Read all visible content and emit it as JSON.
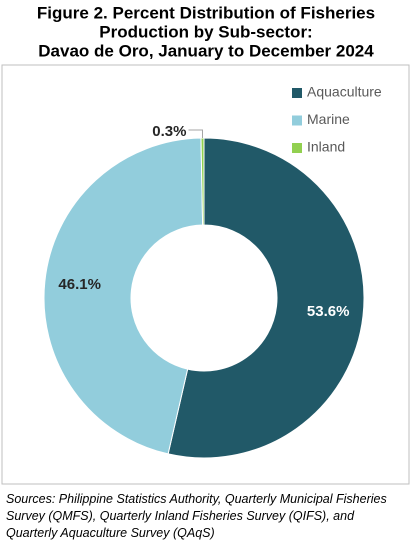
{
  "chart_data": {
    "type": "donut",
    "title": [
      "Figure 2. Percent Distribution of Fisheries",
      "Production by Sub-sector:",
      "Davao de Oro, January to December 2024"
    ],
    "categories": [
      "Aquaculture",
      "Marine",
      "Inland"
    ],
    "values": [
      53.6,
      46.1,
      0.3
    ],
    "value_labels": [
      "53.6%",
      "46.1%",
      "0.3%"
    ],
    "colors": [
      "#215968",
      "#92cddc",
      "#92d050"
    ],
    "legend": "top-right",
    "source": "Sources: Philippine Statistics Authority, Quarterly Municipal Fisheries Survey (QMFS), Quarterly Inland Fisheries Survey (QIFS), and Quarterly Aquaculture Survey (QAqS)"
  }
}
